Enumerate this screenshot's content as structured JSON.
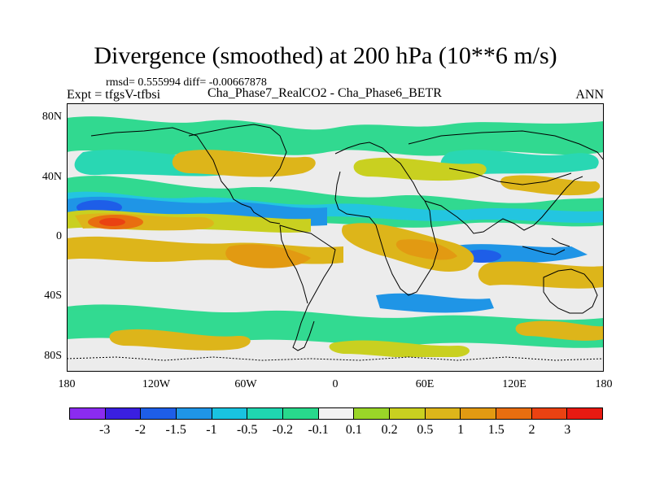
{
  "title": "Divergence (smoothed) at 200 hPa (10**6 m/s)",
  "stats": "rmsd= 0.555994 diff= -0.00667878",
  "experiment": "Expt = tfgsV-tfbsi",
  "case_label": "Cha_Phase7_RealCO2 - Cha_Phase6_BETR",
  "period": "ANN",
  "y_ticks": [
    {
      "label": "80N",
      "lat": 80
    },
    {
      "label": "40N",
      "lat": 40
    },
    {
      "label": "0",
      "lat": 0
    },
    {
      "label": "40S",
      "lat": -40
    },
    {
      "label": "80S",
      "lat": -80
    }
  ],
  "x_ticks": [
    {
      "label": "180",
      "lon": -180
    },
    {
      "label": "120W",
      "lon": -120
    },
    {
      "label": "60W",
      "lon": -60
    },
    {
      "label": "0",
      "lon": 0
    },
    {
      "label": "60E",
      "lon": 60
    },
    {
      "label": "120E",
      "lon": 120
    },
    {
      "label": "180",
      "lon": 180
    }
  ],
  "colorbar": {
    "colors": [
      "#8b2bf0",
      "#3a1fe0",
      "#1e5ee8",
      "#1f95e6",
      "#19c3e0",
      "#1fd6b0",
      "#28d98c",
      "#f2f2f2",
      "#9ad628",
      "#c9d020",
      "#ddb51a",
      "#e29a12",
      "#e86e10",
      "#ea4212",
      "#e81a12"
    ],
    "labels": [
      "-3",
      "-2",
      "-1.5",
      "-1",
      "-0.5",
      "-0.2",
      "-0.1",
      "0.1",
      "0.2",
      "0.5",
      "1",
      "1.5",
      "2",
      "3"
    ]
  }
}
